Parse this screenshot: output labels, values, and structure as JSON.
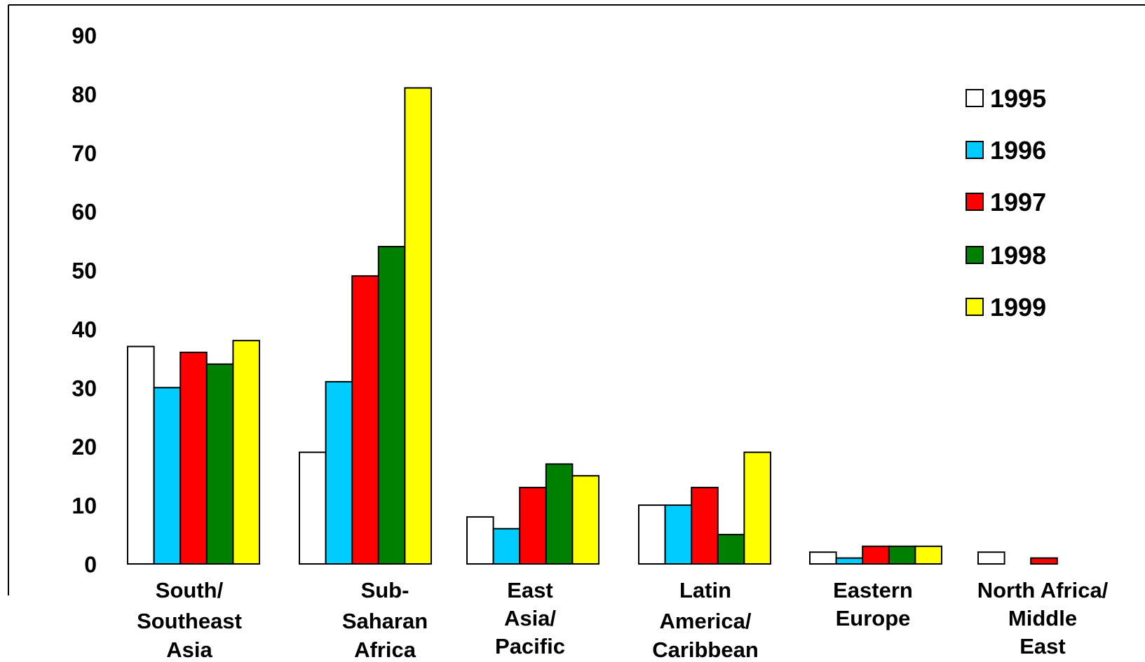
{
  "chart_data": {
    "type": "bar",
    "categories": [
      [
        "South/",
        "Southeast",
        "Asia"
      ],
      [
        "Sub-",
        "Saharan",
        "Africa"
      ],
      [
        "East",
        "Asia/",
        "Pacific"
      ],
      [
        "Latin",
        "America/",
        "Caribbean"
      ],
      [
        "Eastern",
        "Europe"
      ],
      [
        "North Africa/",
        "Middle",
        "East"
      ]
    ],
    "series": [
      {
        "name": "1995",
        "color": "#ffffff",
        "values": [
          37,
          19,
          8,
          10,
          2,
          2
        ]
      },
      {
        "name": "1996",
        "color": "#00ccff",
        "values": [
          30,
          31,
          6,
          10,
          1,
          0
        ]
      },
      {
        "name": "1997",
        "color": "#ff0000",
        "values": [
          36,
          49,
          13,
          13,
          3,
          1
        ]
      },
      {
        "name": "1998",
        "color": "#008000",
        "values": [
          34,
          54,
          17,
          5,
          3,
          0
        ]
      },
      {
        "name": "1999",
        "color": "#ffff00",
        "values": [
          38,
          81,
          15,
          19,
          3,
          0
        ]
      }
    ],
    "yticks": [
      "0",
      "10",
      "20",
      "30",
      "40",
      "50",
      "60",
      "70",
      "80",
      "90"
    ],
    "ylim": [
      0,
      90
    ],
    "grid": false,
    "legend_position": "top-right",
    "title": "",
    "xlabel": "",
    "ylabel": ""
  }
}
